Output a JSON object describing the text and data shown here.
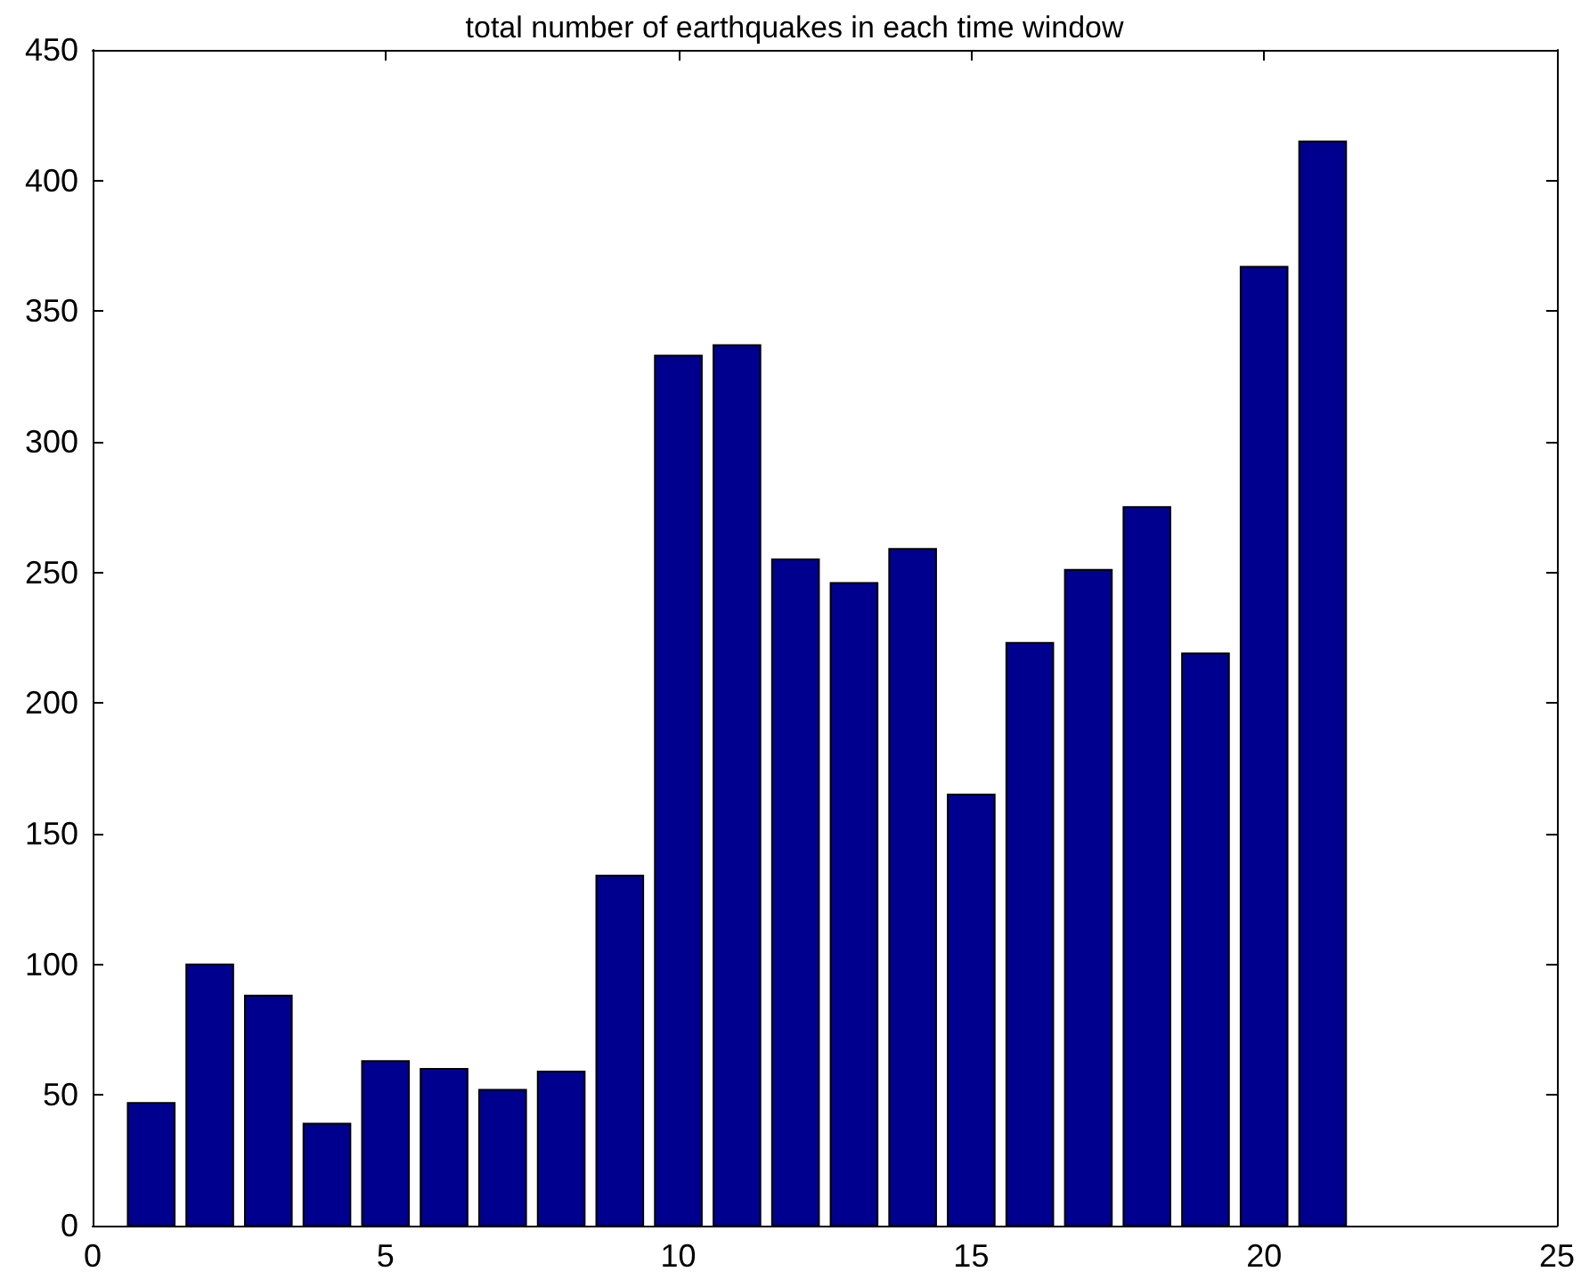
{
  "chart_data": {
    "type": "bar",
    "title": "total number of earthquakes in each time window",
    "x": [
      1,
      2,
      3,
      4,
      5,
      6,
      7,
      8,
      9,
      10,
      11,
      12,
      13,
      14,
      15,
      16,
      17,
      18,
      19,
      20,
      21
    ],
    "values": [
      47,
      100,
      88,
      39,
      63,
      60,
      52,
      59,
      134,
      333,
      337,
      255,
      246,
      259,
      165,
      223,
      251,
      275,
      219,
      367,
      415
    ],
    "color": "#00008f",
    "xlim": [
      0,
      25
    ],
    "xticks": [
      0,
      5,
      10,
      15,
      20,
      25
    ],
    "ylim": [
      0,
      450
    ],
    "yticks": [
      0,
      50,
      100,
      150,
      200,
      250,
      300,
      350,
      400,
      450
    ],
    "grid": false
  }
}
